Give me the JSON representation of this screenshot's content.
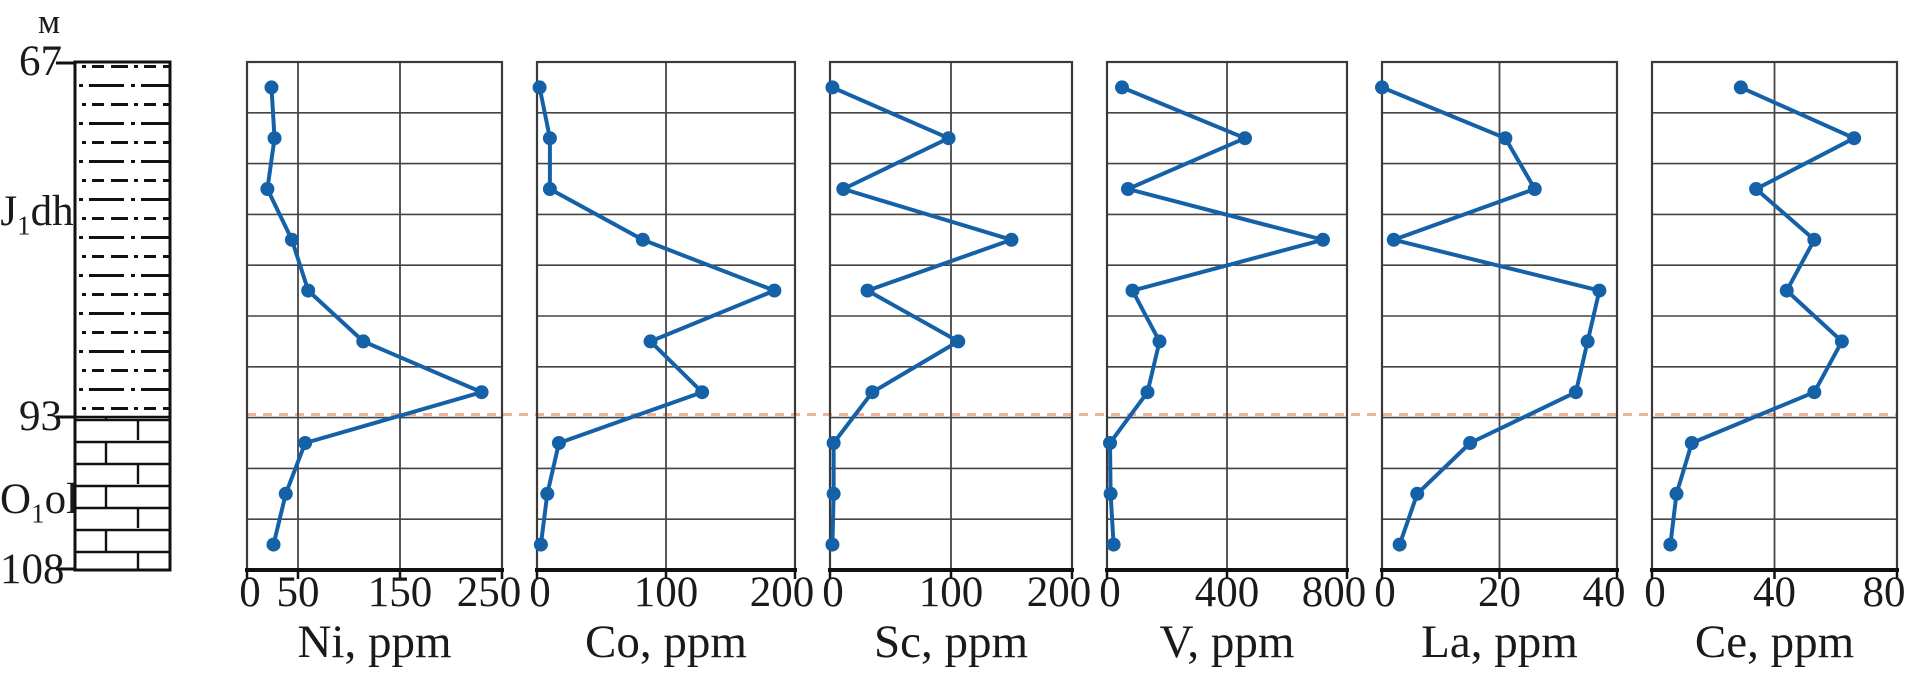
{
  "figure": {
    "kind": "geochemical depth profiles with stratigraphic column",
    "background": "#ffffff"
  },
  "colors": {
    "series": "#1561a8",
    "grid": "#454545",
    "border": "#3a3a3a",
    "axis": "#111111",
    "boundary_dashed": "#efb29b",
    "text": "#1a1a1a"
  },
  "depth_axis": {
    "unit_label": "м",
    "ticks": [
      {
        "label": "67",
        "y_frac": 0.0
      },
      {
        "label": "93",
        "y_frac": 0.6989
      },
      {
        "label": "108",
        "y_frac": 1.0
      }
    ]
  },
  "stratigraphy": {
    "upper_unit": {
      "prefix": "J",
      "subscript": "1",
      "suffix": "dh",
      "lithology": "dash-dot-mudstone"
    },
    "lower_unit": {
      "prefix": "O",
      "subscript": "1",
      "suffix": "ol",
      "lithology": "brick-limestone"
    },
    "boundary": {
      "depth_label": "93",
      "style": "dashed",
      "color": "#efb29b"
    }
  },
  "chart_data": {
    "type": "line",
    "orientation": "vertical-depth-profile",
    "sample_count": 10,
    "grid": true,
    "depth_range_labels": [
      "67",
      "93",
      "108"
    ],
    "panels": [
      {
        "element": "Ni",
        "title": "Ni, ppm",
        "xlim": [
          0,
          250
        ],
        "xticks": [
          0,
          50,
          150,
          250
        ],
        "values": [
          24,
          27,
          20,
          44,
          60,
          114,
          230,
          57,
          38,
          26
        ]
      },
      {
        "element": "Co",
        "title": "Co, ppm",
        "xlim": [
          0,
          200
        ],
        "xticks": [
          0,
          100,
          200
        ],
        "values": [
          2,
          10,
          10,
          82,
          184,
          88,
          128,
          17,
          8,
          3
        ]
      },
      {
        "element": "Sc",
        "title": "Sc, ppm",
        "xlim": [
          0,
          200
        ],
        "xticks": [
          0,
          100,
          200
        ],
        "values": [
          2,
          98,
          11,
          150,
          31,
          106,
          35,
          3,
          3,
          2
        ]
      },
      {
        "element": "V",
        "title": "V, ppm",
        "xlim": [
          0,
          800
        ],
        "xticks": [
          0,
          400,
          800
        ],
        "values": [
          50,
          460,
          70,
          720,
          85,
          175,
          135,
          10,
          12,
          22
        ]
      },
      {
        "element": "La",
        "title": "La, ppm",
        "xlim": [
          0,
          40
        ],
        "xticks": [
          0,
          20,
          40
        ],
        "values": [
          0,
          21,
          26,
          2,
          37,
          35,
          33,
          15,
          6,
          3
        ]
      },
      {
        "element": "Ce",
        "title": "Ce, ppm",
        "xlim": [
          0,
          80
        ],
        "xticks": [
          0,
          40,
          80
        ],
        "values": [
          29,
          66,
          34,
          53,
          44,
          62,
          53,
          13,
          8,
          6
        ]
      }
    ]
  }
}
